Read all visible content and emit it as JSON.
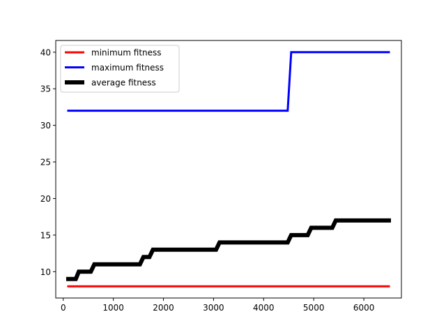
{
  "chart_data": {
    "type": "line",
    "title": "",
    "xlabel": "",
    "ylabel": "",
    "xlim": [
      -150,
      6750
    ],
    "ylim": [
      6.4,
      41.6
    ],
    "x_ticks": [
      0,
      1000,
      2000,
      3000,
      4000,
      5000,
      6000
    ],
    "y_ticks": [
      10,
      15,
      20,
      25,
      30,
      35,
      40
    ],
    "grid": false,
    "legend_position": "upper-left",
    "series": [
      {
        "name": "minimum fitness",
        "color": "#ff0000",
        "points": [
          [
            100,
            8
          ],
          [
            6500,
            8
          ]
        ]
      },
      {
        "name": "maximum fitness",
        "color": "#0000ff",
        "points": [
          [
            100,
            32
          ],
          [
            4480,
            32
          ],
          [
            4550,
            40
          ],
          [
            6500,
            40
          ]
        ]
      },
      {
        "name": "average fitness",
        "color": "#000000",
        "points": [
          [
            100,
            9
          ],
          [
            250,
            9
          ],
          [
            310,
            10
          ],
          [
            550,
            10
          ],
          [
            620,
            11
          ],
          [
            1530,
            11
          ],
          [
            1600,
            12
          ],
          [
            1720,
            12
          ],
          [
            1790,
            13
          ],
          [
            3050,
            13
          ],
          [
            3120,
            14
          ],
          [
            4480,
            14
          ],
          [
            4550,
            15
          ],
          [
            4880,
            15
          ],
          [
            4950,
            16
          ],
          [
            5370,
            16
          ],
          [
            5440,
            17
          ],
          [
            6500,
            17
          ]
        ]
      }
    ]
  }
}
